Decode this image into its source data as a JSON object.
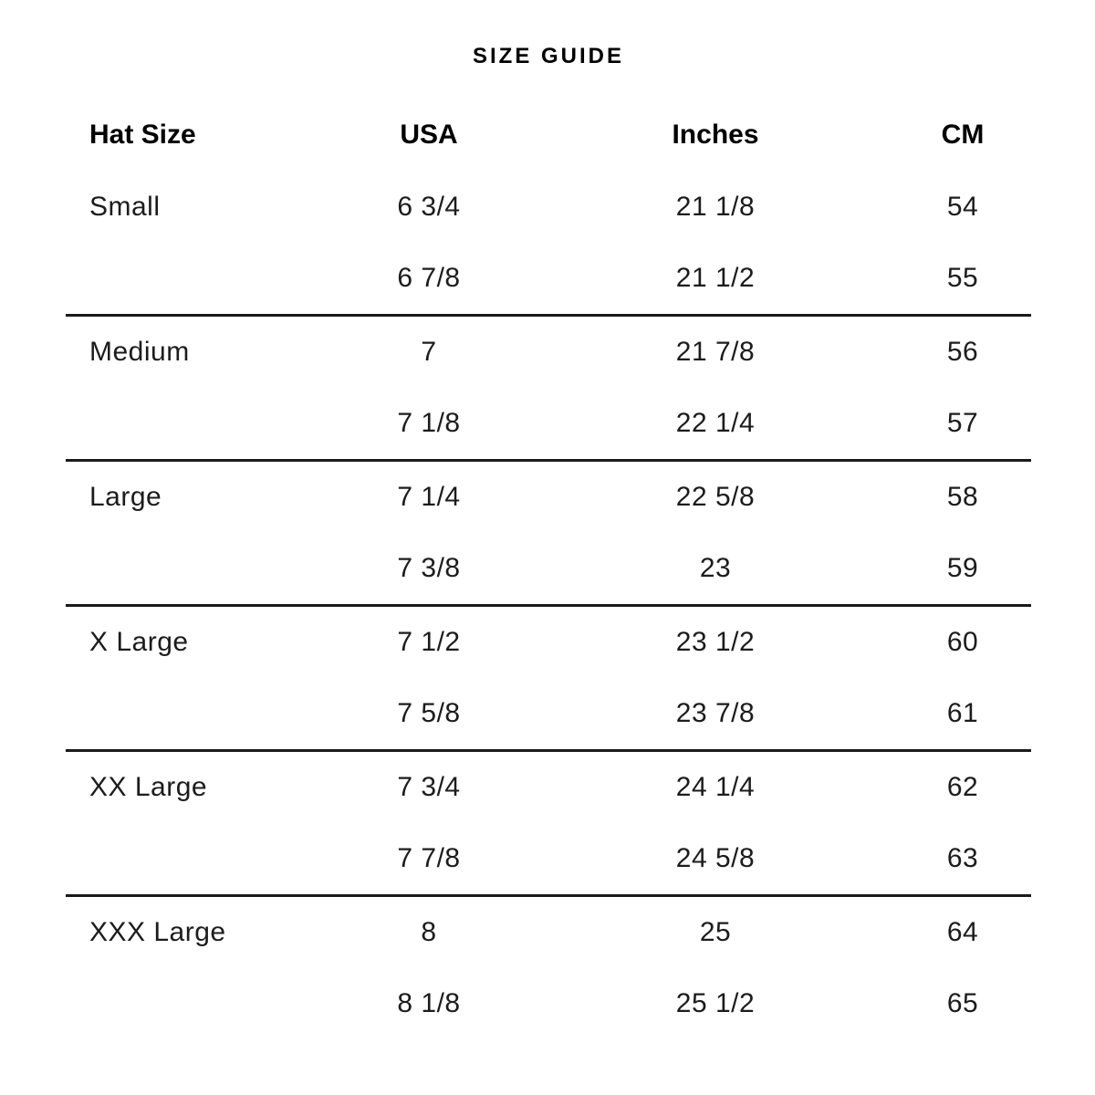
{
  "title": "SIZE GUIDE",
  "table": {
    "columns": [
      "Hat Size",
      "USA",
      "Inches",
      "CM"
    ],
    "groups": [
      {
        "rows": [
          [
            "Small",
            "6 3/4",
            "21 1/8",
            "54"
          ],
          [
            "",
            "6 7/8",
            "21 1/2",
            "55"
          ]
        ]
      },
      {
        "rows": [
          [
            "Medium",
            "7",
            "21 7/8",
            "56"
          ],
          [
            "",
            "7 1/8",
            "22 1/4",
            "57"
          ]
        ]
      },
      {
        "rows": [
          [
            "Large",
            "7 1/4",
            "22 5/8",
            "58"
          ],
          [
            "",
            "7 3/8",
            "23",
            "59"
          ]
        ]
      },
      {
        "rows": [
          [
            "X Large",
            "7 1/2",
            "23 1/2",
            "60"
          ],
          [
            "",
            "7 5/8",
            "23 7/8",
            "61"
          ]
        ]
      },
      {
        "rows": [
          [
            "XX Large",
            "7 3/4",
            "24 1/4",
            "62"
          ],
          [
            "",
            "7 7/8",
            "24 5/8",
            "63"
          ]
        ]
      },
      {
        "rows": [
          [
            "XXX Large",
            "8",
            "25",
            "64"
          ],
          [
            "",
            "8 1/8",
            "25 1/2",
            "65"
          ]
        ]
      }
    ],
    "colors": {
      "divider": "#1a1a1a",
      "heading_text": "#000000",
      "body_text": "#1c1c1c",
      "background": "#ffffff"
    }
  }
}
